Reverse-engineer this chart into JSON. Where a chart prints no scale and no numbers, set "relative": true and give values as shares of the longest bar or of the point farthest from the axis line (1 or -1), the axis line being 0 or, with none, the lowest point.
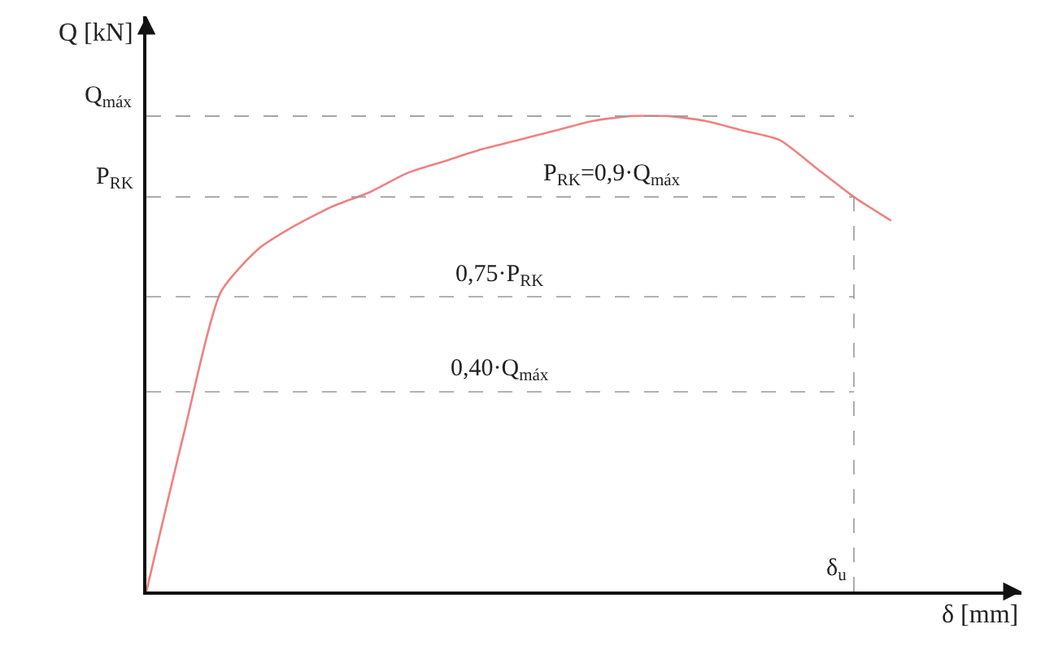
{
  "chart_data": {
    "type": "line",
    "relative": true,
    "xlabel": "δ [mm]",
    "ylabel": "Q [kN]",
    "categories": [
      null,
      null,
      null,
      null,
      null,
      null,
      null,
      null,
      null,
      null,
      null,
      null,
      null,
      null,
      null,
      null,
      null,
      null,
      null,
      null,
      null
    ],
    "series": [
      {
        "color": "#f08080",
        "values": [
          0,
          0.33,
          0.63,
          0.72,
          0.77,
          0.81,
          0.84,
          0.88,
          0.905,
          0.93,
          0.95,
          0.97,
          0.99,
          1,
          1,
          0.99,
          0.97,
          0.95,
          0.89,
          0.83,
          0.78
        ]
      }
    ],
    "ref_lines": [
      {
        "axis": "y",
        "value": 1,
        "label": "Q$_{máx}$",
        "color": "#999999",
        "line_style": "dashed"
      },
      {
        "axis": "y",
        "value": 0.83,
        "label": "P$_{RK}$",
        "color": "#999999",
        "line_style": "dashed"
      },
      {
        "axis": "y",
        "value": 0.62,
        "label": "0,75·P$_{RK}$",
        "color": "#999999",
        "line_style": "dashed"
      },
      {
        "axis": "y",
        "value": 0.42,
        "label": "0,40·Q$_{máx}$",
        "color": "#999999",
        "line_style": "dashed"
      }
    ],
    "annotations": [
      "P$_{RK}$=0,9·Q$_{máx}$",
      "δ$_{u}$"
    ],
    "legend": false,
    "marker": "none",
    "line_style": "solid"
  }
}
